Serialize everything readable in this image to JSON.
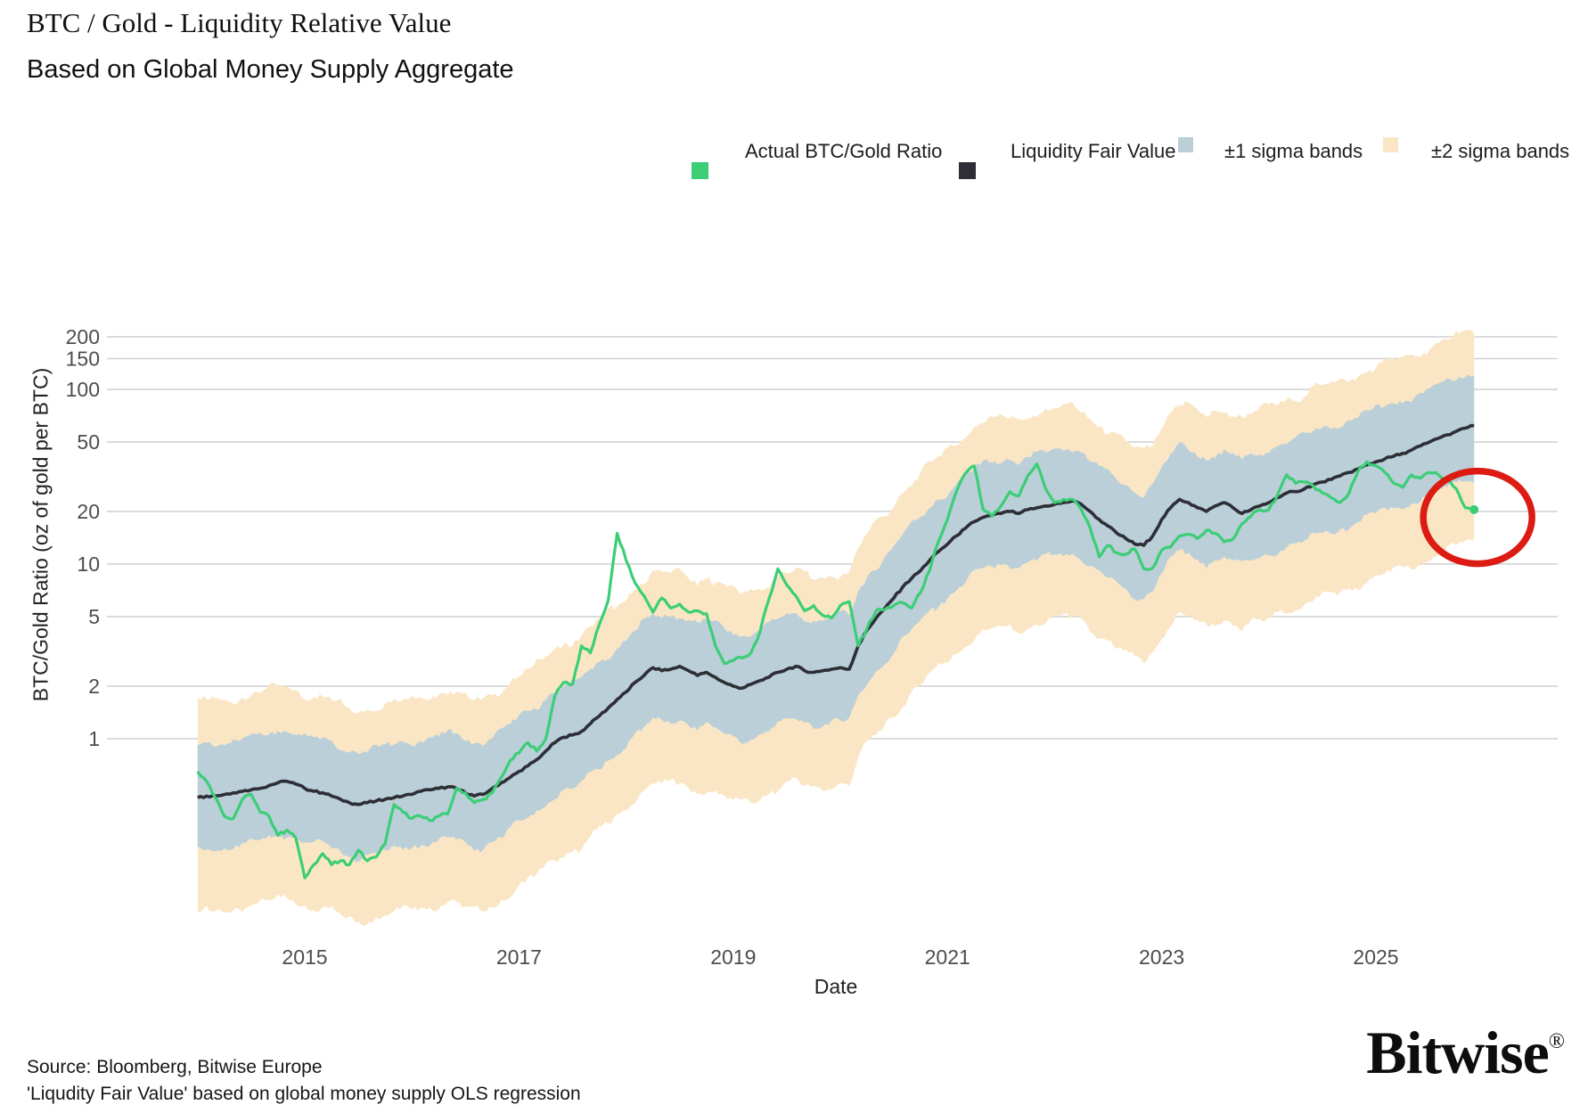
{
  "title": "BTC / Gold - Liquidity Relative Value",
  "subtitle": "Based on Global Money Supply Aggregate",
  "legend": {
    "items": [
      {
        "label": "Actual BTC/Gold Ratio",
        "color": "#3BCE76",
        "type": "line"
      },
      {
        "label": "Liquidity Fair Value",
        "color": "#2E2E36",
        "type": "line"
      },
      {
        "label": "±1 sigma bands",
        "color": "#BACFD8",
        "type": "band"
      },
      {
        "label": "±2 sigma bands",
        "color": "#FAE6C4",
        "type": "band"
      }
    ]
  },
  "footer": {
    "source_line": "Source: Bloomberg, Bitwise Europe",
    "note_line": "'Liqudity Fair Value' based on global money supply OLS regression"
  },
  "brand": {
    "logo_text": "Bitwise",
    "registered_mark": "®"
  },
  "chart_data": {
    "type": "line",
    "title": "BTC / Gold - Liquidity Relative Value",
    "x_axis": {
      "label": "Date",
      "ticks": [
        2015,
        2017,
        2019,
        2021,
        2023,
        2025
      ],
      "range": [
        2014.0,
        2026.1
      ]
    },
    "y_axis": {
      "label": "BTC/Gold Ratio (oz of gold per BTC)",
      "scale": "log",
      "ticks": [
        200,
        150,
        100,
        50,
        20,
        10,
        5,
        2,
        1
      ],
      "range": [
        0.08,
        240
      ]
    },
    "grid": true,
    "legend_position": "top-right",
    "start_year": 2014,
    "points_per_year": 12,
    "series": [
      {
        "name": "Actual BTC/Gold Ratio",
        "color": "#3BCE76",
        "values": [
          0.65,
          0.57,
          0.46,
          0.36,
          0.35,
          0.45,
          0.48,
          0.38,
          0.36,
          0.28,
          0.3,
          0.27,
          0.16,
          0.19,
          0.22,
          0.19,
          0.2,
          0.19,
          0.23,
          0.2,
          0.21,
          0.25,
          0.42,
          0.38,
          0.35,
          0.36,
          0.34,
          0.36,
          0.37,
          0.52,
          0.49,
          0.43,
          0.45,
          0.49,
          0.6,
          0.75,
          0.83,
          0.95,
          0.85,
          1.0,
          1.75,
          2.1,
          2.05,
          3.4,
          3.1,
          4.5,
          6.2,
          15.0,
          10.5,
          7.8,
          6.6,
          5.3,
          6.4,
          5.6,
          5.9,
          5.3,
          5.4,
          5.2,
          3.4,
          2.7,
          2.8,
          2.9,
          3.1,
          4.1,
          6.3,
          9.4,
          7.6,
          6.6,
          5.4,
          5.8,
          5.1,
          4.9,
          5.8,
          6.1,
          3.4,
          4.3,
          5.4,
          5.5,
          5.8,
          6.0,
          5.6,
          6.9,
          9.2,
          13.5,
          18.0,
          26.0,
          33.0,
          36.5,
          20.5,
          18.8,
          21.5,
          26.0,
          24.5,
          32.0,
          37.5,
          27.0,
          22.5,
          23.5,
          23.5,
          20.5,
          16.0,
          11.0,
          12.8,
          11.6,
          11.4,
          12.2,
          9.4,
          9.5,
          12.0,
          12.5,
          14.5,
          14.8,
          14.0,
          15.6,
          15.0,
          13.4,
          13.9,
          17.0,
          18.8,
          20.5,
          20.5,
          25.0,
          32.5,
          29.0,
          29.5,
          28.0,
          25.5,
          24.0,
          22.5,
          25.5,
          34.0,
          38.5,
          36.5,
          33.5,
          29.0,
          27.5,
          32.5,
          31.0,
          33.5,
          32.5,
          30.0,
          27.0,
          21.0,
          20.5
        ]
      },
      {
        "name": "Liquidity Fair Value",
        "color": "#2E2E36",
        "values": [
          0.46,
          0.47,
          0.47,
          0.48,
          0.49,
          0.5,
          0.51,
          0.52,
          0.54,
          0.56,
          0.57,
          0.55,
          0.52,
          0.5,
          0.49,
          0.47,
          0.45,
          0.43,
          0.42,
          0.43,
          0.44,
          0.45,
          0.46,
          0.47,
          0.48,
          0.5,
          0.51,
          0.52,
          0.53,
          0.52,
          0.49,
          0.47,
          0.48,
          0.52,
          0.56,
          0.6,
          0.65,
          0.7,
          0.76,
          0.85,
          0.95,
          1.02,
          1.05,
          1.1,
          1.22,
          1.35,
          1.5,
          1.68,
          1.85,
          2.1,
          2.3,
          2.55,
          2.45,
          2.5,
          2.6,
          2.45,
          2.3,
          2.4,
          2.25,
          2.1,
          2.0,
          1.95,
          2.05,
          2.15,
          2.25,
          2.4,
          2.5,
          2.6,
          2.45,
          2.4,
          2.45,
          2.5,
          2.55,
          2.5,
          3.4,
          4.2,
          4.9,
          5.6,
          6.4,
          7.4,
          8.3,
          9.2,
          10.5,
          11.8,
          13.0,
          14.5,
          16.0,
          17.5,
          18.5,
          19.0,
          19.5,
          20.0,
          19.5,
          20.5,
          21.0,
          21.5,
          22.0,
          22.5,
          23.0,
          22.0,
          20.0,
          18.0,
          16.5,
          15.0,
          14.0,
          13.0,
          12.8,
          14.5,
          18.0,
          21.0,
          23.5,
          22.5,
          21.0,
          20.0,
          21.5,
          22.5,
          21.0,
          19.5,
          20.5,
          21.5,
          22.5,
          24.0,
          25.5,
          26.0,
          27.0,
          28.5,
          29.5,
          30.5,
          32.0,
          33.5,
          35.0,
          37.0,
          38.5,
          40.0,
          41.5,
          43.0,
          45.0,
          47.5,
          50.0,
          52.5,
          55.0,
          57.5,
          60.0,
          62.0
        ]
      }
    ],
    "bands": {
      "sigma1": {
        "name": "±1 sigma bands",
        "color": "#BACFD8",
        "upper_factor": 2.0,
        "lower_factor": 2.0
      },
      "sigma2": {
        "name": "±2 sigma bands",
        "color": "#FAE6C4",
        "upper_factor": 3.5,
        "lower_factor": 4.6
      }
    },
    "annotation": {
      "shape": "ellipse",
      "color": "#DC1B12",
      "center_year": 2025.95,
      "center_value": 18.5,
      "meaning": "highlights latest actual ratio falling below fair value"
    },
    "last_point": {
      "year_decimal": 2025.92,
      "actual": 20.5,
      "fair": 62.0
    }
  }
}
